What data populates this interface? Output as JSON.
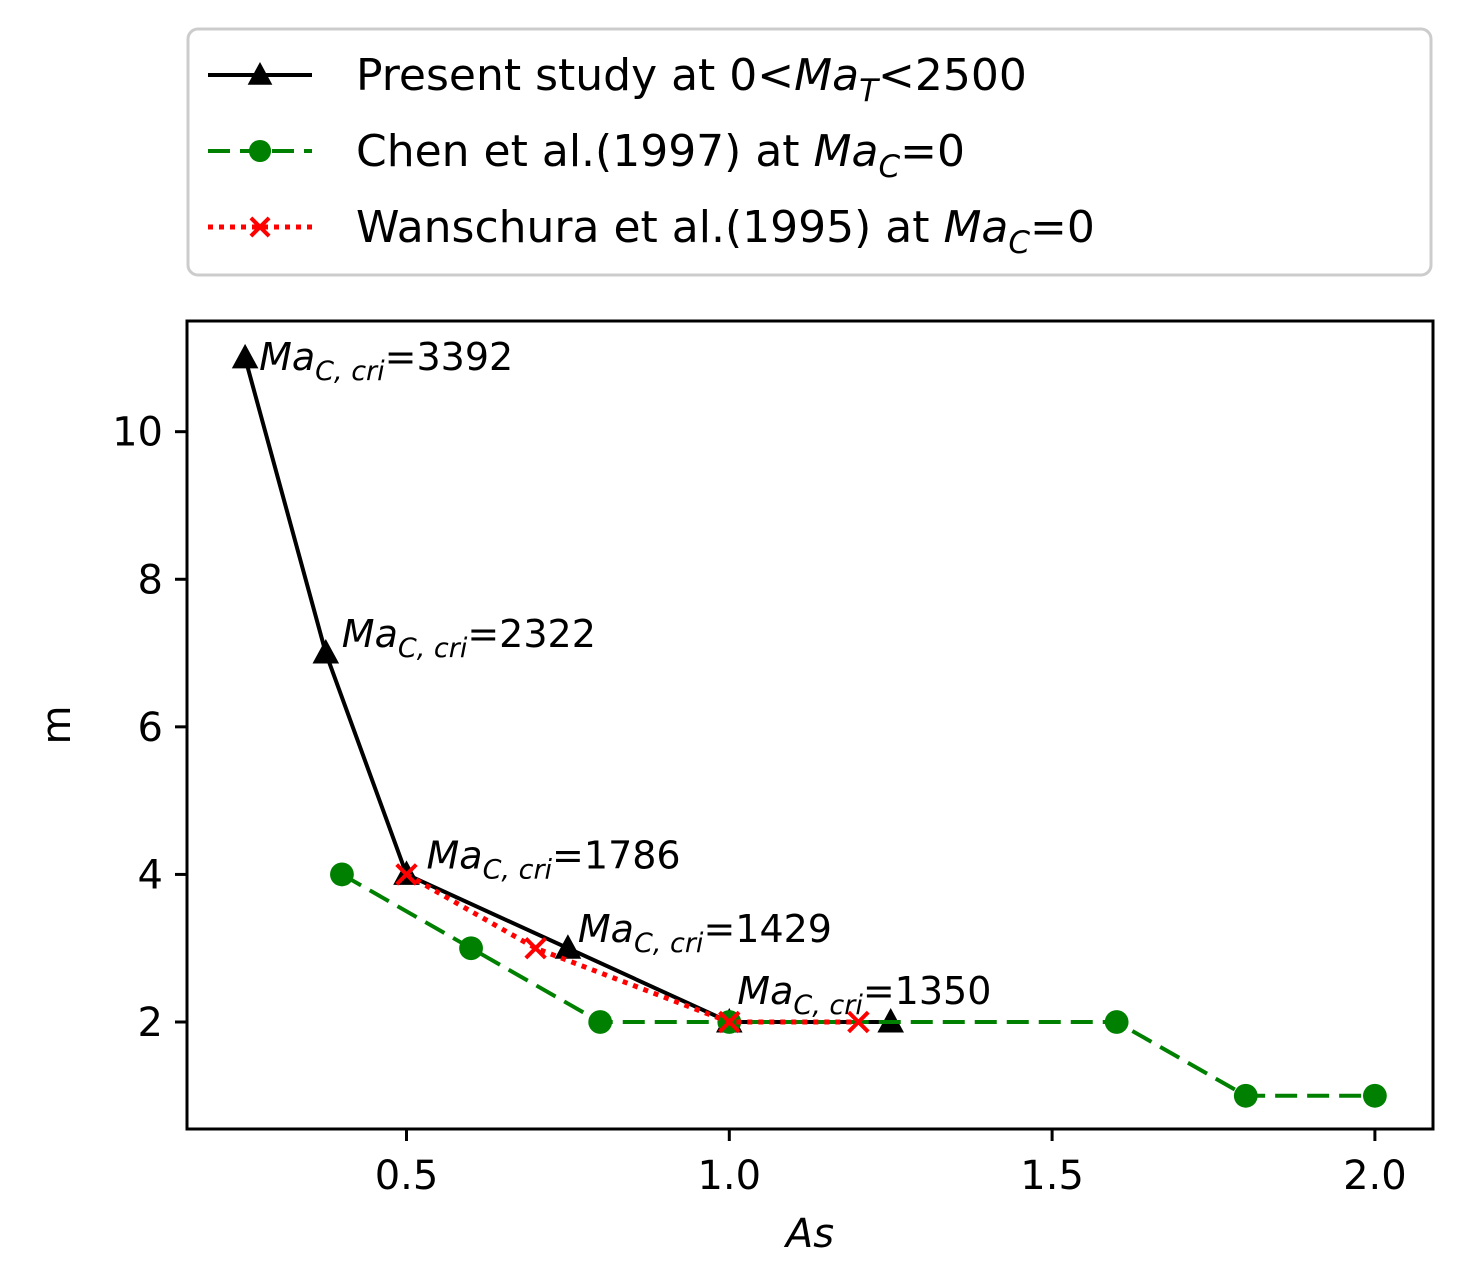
{
  "chart_data": {
    "type": "line",
    "xlabel": "As",
    "ylabel": "m",
    "xlim": [
      0.16,
      2.09
    ],
    "ylim": [
      0.55,
      11.5
    ],
    "xticks": [
      0.5,
      1.0,
      1.5,
      2.0
    ],
    "xtick_labels": [
      "0.5",
      "1.0",
      "1.5",
      "2.0"
    ],
    "yticks": [
      2,
      4,
      6,
      8,
      10
    ],
    "ytick_labels": [
      "2",
      "4",
      "6",
      "8",
      "10"
    ],
    "grid": false,
    "legend_position": "above plot",
    "series": [
      {
        "name": "Present study at 0<Ma_T<2500",
        "legend": {
          "pre": "Present study at 0<",
          "it": "Ma",
          "sub": "T",
          "post": "<2500"
        },
        "color": "#000000",
        "linestyle": "solid",
        "marker": "triangle",
        "x": [
          0.25,
          0.375,
          0.5,
          0.75,
          1.0,
          1.25
        ],
        "y": [
          11,
          7,
          4,
          3,
          2,
          2
        ]
      },
      {
        "name": "Chen et al.(1997) at Ma_C=0",
        "legend": {
          "pre": "Chen et al.(1997) at ",
          "it": "Ma",
          "sub": "C",
          "post": "=0"
        },
        "color": "#008000",
        "linestyle": "dashed",
        "marker": "circle",
        "x": [
          0.4,
          0.6,
          0.8,
          1.0,
          1.6,
          1.8,
          2.0
        ],
        "y": [
          4,
          3,
          2,
          2,
          2,
          1,
          1
        ]
      },
      {
        "name": "Wanschura et al.(1995) at Ma_C=0",
        "legend": {
          "pre": "Wanschura et al.(1995) at ",
          "it": "Ma",
          "sub": "C",
          "post": "=0"
        },
        "color": "#ff0000",
        "linestyle": "dotted",
        "marker": "x",
        "x": [
          0.5,
          0.7,
          1.0,
          1.2
        ],
        "y": [
          4,
          3,
          2,
          2
        ]
      }
    ],
    "annotations": [
      {
        "x": 0.25,
        "y": 11,
        "it": "Ma",
        "sub": "C, cri",
        "post": "=3392"
      },
      {
        "x": 0.375,
        "y": 7,
        "it": "Ma",
        "sub": "C, cri",
        "post": "=2322"
      },
      {
        "x": 0.5,
        "y": 4,
        "it": "Ma",
        "sub": "C, cri",
        "post": "=1786"
      },
      {
        "x": 0.75,
        "y": 3,
        "it": "Ma",
        "sub": "C, cri",
        "post": "=1429"
      },
      {
        "x": 1.0,
        "y": 2,
        "it": "Ma",
        "sub": "C, cri",
        "post": "=1350"
      }
    ]
  }
}
